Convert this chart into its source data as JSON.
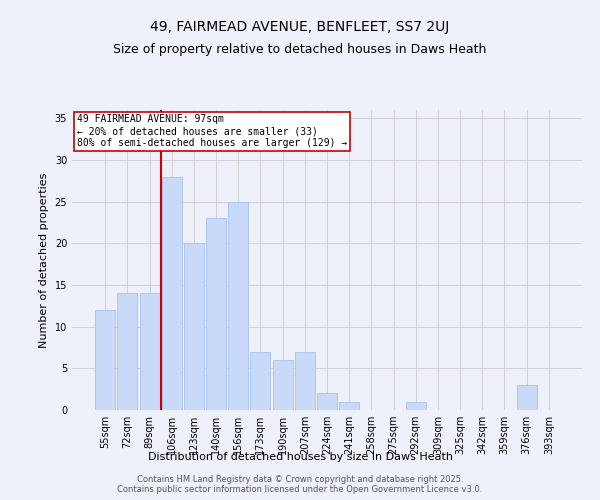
{
  "title_line1": "49, FAIRMEAD AVENUE, BENFLEET, SS7 2UJ",
  "title_line2": "Size of property relative to detached houses in Daws Heath",
  "xlabel": "Distribution of detached houses by size in Daws Heath",
  "ylabel": "Number of detached properties",
  "categories": [
    "55sqm",
    "72sqm",
    "89sqm",
    "106sqm",
    "123sqm",
    "140sqm",
    "156sqm",
    "173sqm",
    "190sqm",
    "207sqm",
    "224sqm",
    "241sqm",
    "258sqm",
    "275sqm",
    "292sqm",
    "309sqm",
    "325sqm",
    "342sqm",
    "359sqm",
    "376sqm",
    "393sqm"
  ],
  "values": [
    12,
    14,
    14,
    28,
    20,
    23,
    25,
    7,
    6,
    7,
    2,
    1,
    0,
    0,
    1,
    0,
    0,
    0,
    0,
    3,
    0
  ],
  "bar_color": "#c9daf8",
  "bar_edge_color": "#a4c2f4",
  "vline_color": "#cc0000",
  "annotation_text": "49 FAIRMEAD AVENUE: 97sqm\n← 20% of detached houses are smaller (33)\n80% of semi-detached houses are larger (129) →",
  "annotation_box_color": "#ffffff",
  "annotation_box_edge_color": "#cc0000",
  "ylim": [
    0,
    36
  ],
  "yticks": [
    0,
    5,
    10,
    15,
    20,
    25,
    30,
    35
  ],
  "grid_color": "#cccccc",
  "background_color": "#eef0fa",
  "footer_text": "Contains HM Land Registry data © Crown copyright and database right 2025.\nContains public sector information licensed under the Open Government Licence v3.0.",
  "title_fontsize": 10,
  "subtitle_fontsize": 9,
  "axis_label_fontsize": 8,
  "tick_fontsize": 7,
  "annotation_fontsize": 7,
  "footer_fontsize": 6
}
